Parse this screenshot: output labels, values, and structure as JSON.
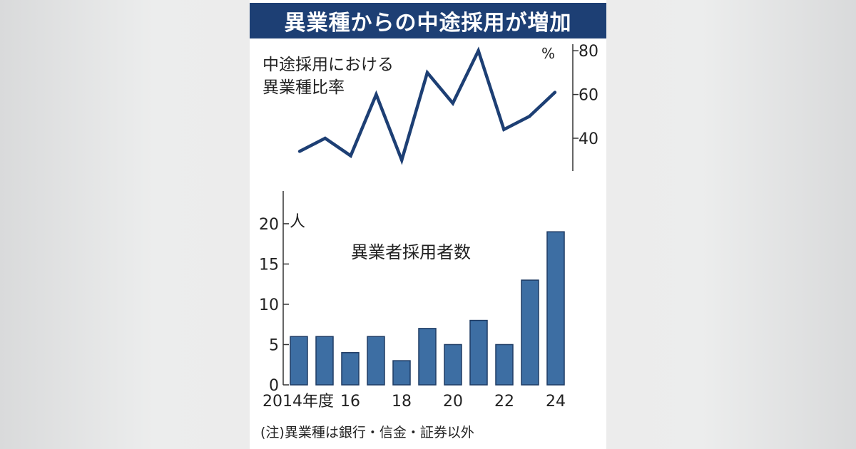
{
  "title": "異業種からの中途採用が増加",
  "note": "(注)異業種は銀行・信金・証券以外",
  "colors": {
    "title_bg": "#1d3f74",
    "line": "#1d3f74",
    "bar": "#3d6ea3",
    "bar_edge": "#1e3b64"
  },
  "chart_data": [
    {
      "type": "line",
      "title_lines": [
        "中途採用における",
        "異業種比率"
      ],
      "unit": "%",
      "x": [
        2014,
        2015,
        2016,
        2017,
        2018,
        2019,
        2020,
        2021,
        2022,
        2023,
        2024
      ],
      "values": [
        34,
        40,
        32,
        60,
        30,
        70,
        56,
        80,
        44,
        50,
        61
      ],
      "y_ticks": [
        "40",
        "60",
        "80"
      ],
      "y_tick_values": [
        40,
        60,
        80
      ],
      "ylim": [
        25,
        83
      ],
      "axis_side": "right",
      "grid": false
    },
    {
      "type": "bar",
      "title": "異業者採用者数",
      "unit": "人",
      "categories": [
        2014,
        2015,
        2016,
        2017,
        2018,
        2019,
        2020,
        2021,
        2022,
        2023,
        2024
      ],
      "values": [
        6,
        6,
        4,
        6,
        3,
        7,
        5,
        8,
        5,
        13,
        19
      ],
      "x_tick_labels": [
        "2014年度",
        "16",
        "18",
        "20",
        "22",
        "24"
      ],
      "x_tick_categories": [
        2014,
        2016,
        2018,
        2020,
        2022,
        2024
      ],
      "y_ticks": [
        "0",
        "5",
        "10",
        "15",
        "20"
      ],
      "y_tick_values": [
        0,
        5,
        10,
        15,
        20
      ],
      "ylim": [
        0,
        23
      ],
      "axis_side": "left",
      "grid": false
    }
  ]
}
